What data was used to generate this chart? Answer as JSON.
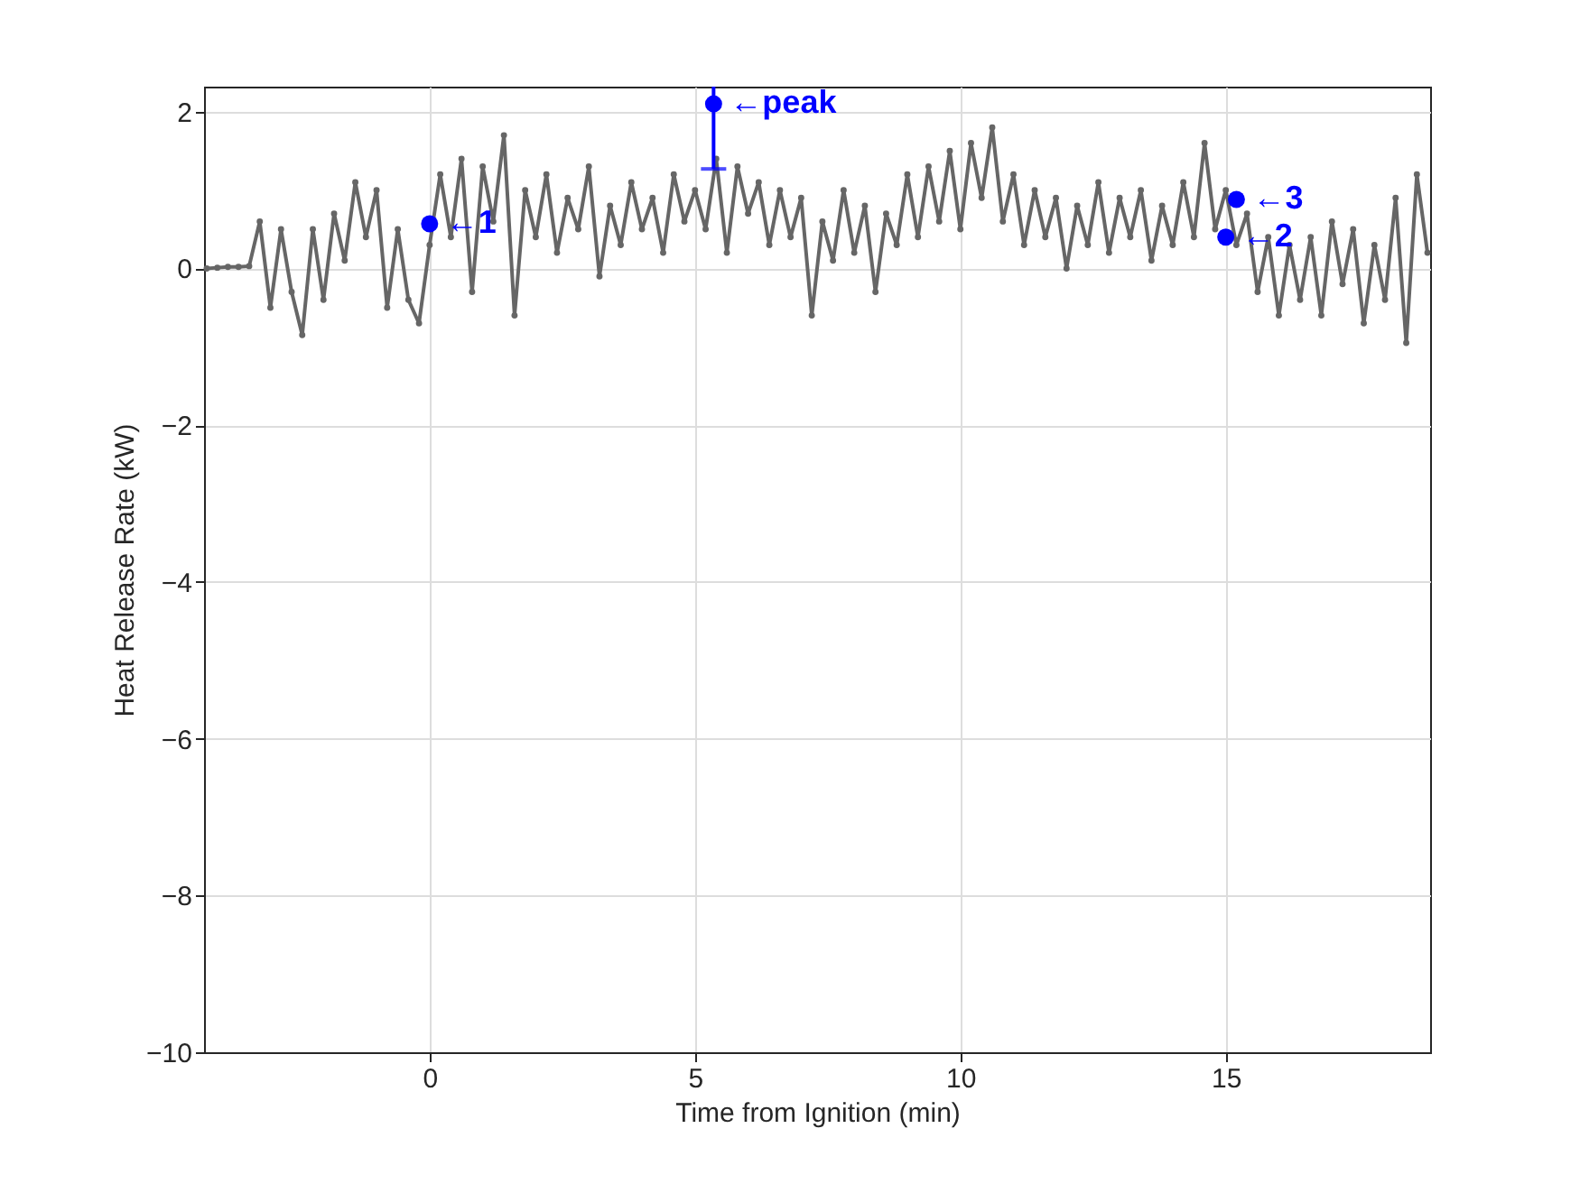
{
  "chart_data": {
    "type": "line",
    "xlabel": "Time from Ignition (min)",
    "ylabel": "Heat Release Rate (kW)",
    "xlim": [
      -4.25,
      18.85
    ],
    "xticks": [
      0,
      5,
      10,
      15
    ],
    "ylim": [
      -10,
      2.32
    ],
    "yticks": [
      -10,
      -8,
      -6,
      -4,
      -2,
      0,
      2
    ],
    "grid": true,
    "series": [
      {
        "marker": "circle",
        "color": "#666666",
        "x": [
          -4.2,
          -4.0,
          -3.8,
          -3.6,
          -3.4,
          -3.2,
          -3.0,
          -2.8,
          -2.6,
          -2.4,
          -2.2,
          -2.0,
          -1.8,
          -1.6,
          -1.4,
          -1.2,
          -1.0,
          -0.8,
          -0.6,
          -0.4,
          -0.2,
          0.0,
          0.2,
          0.4,
          0.6,
          0.8,
          1.0,
          1.2,
          1.4,
          1.6,
          1.8,
          2.0,
          2.2,
          2.4,
          2.6,
          2.8,
          3.0,
          3.2,
          3.4,
          3.6,
          3.8,
          4.0,
          4.2,
          4.4,
          4.6,
          4.8,
          5.0,
          5.2,
          5.4,
          5.6,
          5.8,
          6.0,
          6.2,
          6.4,
          6.6,
          6.8,
          7.0,
          7.2,
          7.4,
          7.6,
          7.8,
          8.0,
          8.2,
          8.4,
          8.6,
          8.8,
          9.0,
          9.2,
          9.4,
          9.6,
          9.8,
          10.0,
          10.2,
          10.4,
          10.6,
          10.8,
          11.0,
          11.2,
          11.4,
          11.6,
          11.8,
          12.0,
          12.2,
          12.4,
          12.6,
          12.8,
          13.0,
          13.2,
          13.4,
          13.6,
          13.8,
          14.0,
          14.2,
          14.4,
          14.6,
          14.8,
          15.0,
          15.2,
          15.4,
          15.6,
          15.8,
          16.0,
          16.2,
          16.4,
          16.6,
          16.8,
          17.0,
          17.2,
          17.4,
          17.6,
          17.8,
          18.0,
          18.2,
          18.4,
          18.6,
          18.8
        ],
        "values": [
          0.0,
          0.01,
          0.02,
          0.02,
          0.03,
          0.6,
          -0.5,
          0.5,
          -0.3,
          -0.85,
          0.5,
          -0.4,
          0.7,
          0.1,
          1.1,
          0.4,
          1.0,
          -0.5,
          0.5,
          -0.4,
          -0.7,
          0.3,
          1.2,
          0.4,
          1.4,
          -0.3,
          1.3,
          0.6,
          1.7,
          -0.6,
          1.0,
          0.4,
          1.2,
          0.2,
          0.9,
          0.5,
          1.3,
          -0.1,
          0.8,
          0.3,
          1.1,
          0.5,
          0.9,
          0.2,
          1.2,
          0.6,
          1.0,
          0.5,
          1.4,
          0.2,
          1.3,
          0.7,
          1.1,
          0.3,
          1.0,
          0.4,
          0.9,
          -0.6,
          0.6,
          0.1,
          1.0,
          0.2,
          0.8,
          -0.3,
          0.7,
          0.3,
          1.2,
          0.4,
          1.3,
          0.6,
          1.5,
          0.5,
          1.6,
          0.9,
          1.8,
          0.6,
          1.2,
          0.3,
          1.0,
          0.4,
          0.9,
          0.0,
          0.8,
          0.3,
          1.1,
          0.2,
          0.9,
          0.4,
          1.0,
          0.1,
          0.8,
          0.3,
          1.1,
          0.4,
          1.6,
          0.5,
          1.0,
          0.3,
          0.7,
          -0.3,
          0.4,
          -0.6,
          0.3,
          -0.4,
          0.4,
          -0.6,
          0.6,
          -0.2,
          0.5,
          -0.7,
          0.3,
          -0.4,
          0.9,
          -0.95,
          1.2,
          0.2
        ]
      },
      {
        "type": "scatter",
        "marker": "circle",
        "color": "#0000ff",
        "x": [
          0,
          5.35,
          15.0,
          15.2
        ],
        "values": [
          0.57,
          2.1,
          0.4,
          0.88
        ],
        "errors": [
          null,
          [
            1.27,
            2.32
          ],
          null,
          null
        ]
      }
    ],
    "annotations": [
      {
        "text": "←1",
        "x": 0,
        "y": 0.57
      },
      {
        "text": "←peak",
        "x": 5.35,
        "y": 2.1
      },
      {
        "text": "←2",
        "x": 15.0,
        "y": 0.4
      },
      {
        "text": "←3",
        "x": 15.2,
        "y": 0.88
      }
    ]
  }
}
